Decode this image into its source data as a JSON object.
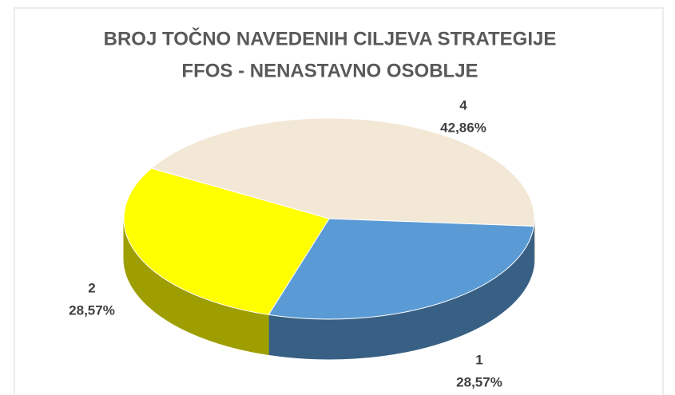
{
  "chart_data": {
    "type": "pie3d",
    "title": [
      "BROJ TOČNO NAVEDENIH CILJEVA STRATEGIJE",
      "FFOS - NENASTAVNO OSOBLJE"
    ],
    "categories": [
      "4",
      "1",
      "2"
    ],
    "values": [
      42.86,
      28.57,
      28.57
    ],
    "value_labels": [
      "42,86%",
      "28,57%",
      "28,57%"
    ],
    "colors": [
      "#f3e8d6",
      "#5b9bd5",
      "#ffff00"
    ]
  }
}
